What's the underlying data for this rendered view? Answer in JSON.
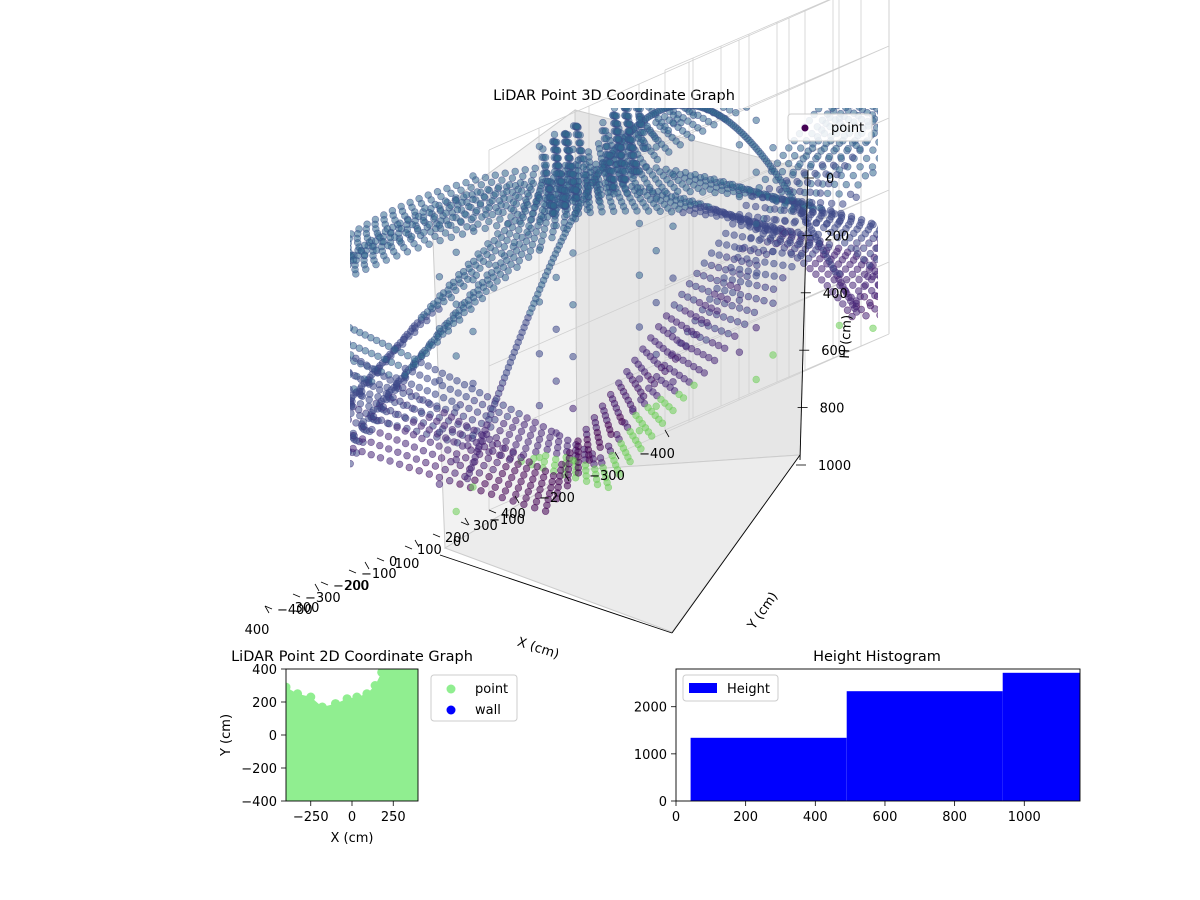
{
  "chart_data": [
    {
      "type": "scatter",
      "projection": "3d",
      "title": "LiDAR Point 3D Coordinate Graph",
      "xlabel": "X (cm)",
      "ylabel": "Y (cm)",
      "zlabel": "H (cm)",
      "x_ticks": [
        "−400",
        "−300",
        "−200",
        "−100",
        "0",
        "100",
        "200",
        "300",
        "400"
      ],
      "y_ticks": [
        "−400",
        "−300",
        "−200",
        "−100",
        "0",
        "100",
        "200",
        "300",
        "400"
      ],
      "z_ticks": [
        "0",
        "200",
        "400",
        "600",
        "800",
        "1000"
      ],
      "xlim": [
        -400,
        400
      ],
      "ylim": [
        -400,
        400
      ],
      "zlim": [
        1000,
        0
      ],
      "z_inverted": true,
      "legend": {
        "placement": "upper-right",
        "entries": [
          "point"
        ]
      },
      "grid": true,
      "colormap": "viridis",
      "series": [
        {
          "name": "point",
          "color": "#440154",
          "bowl_rings": [
            {
              "radius": 550,
              "h_center": 100,
              "dip": 900
            },
            {
              "radius": 620,
              "h_center": 50,
              "dip": 920
            },
            {
              "radius": 500,
              "h_center": 200,
              "dip": 880
            }
          ],
          "clusters": [
            {
              "x": -60,
              "y": 60,
              "h_top": 40,
              "h_bottom": 260
            },
            {
              "x": 60,
              "y": 60,
              "h_top": 40,
              "h_bottom": 260
            }
          ]
        }
      ]
    },
    {
      "type": "scatter",
      "title": "LiDAR Point 2D Coordinate Graph",
      "xlabel": "X (cm)",
      "ylabel": "Y (cm)",
      "x_ticks": [
        -250,
        0,
        250
      ],
      "y_ticks": [
        -400,
        -200,
        0,
        200,
        400
      ],
      "xlim": [
        -400,
        400
      ],
      "ylim": [
        -400,
        400
      ],
      "legend": {
        "placement": "outside-right",
        "entries": [
          "point",
          "wall"
        ]
      },
      "grid": false,
      "series": [
        {
          "name": "point",
          "color": "#90ee90",
          "boundary": [
            [
              -400,
              290
            ],
            [
              -330,
              250
            ],
            [
              -250,
              230
            ],
            [
              -180,
              170
            ],
            [
              -100,
              190
            ],
            [
              -30,
              220
            ],
            [
              30,
              230
            ],
            [
              90,
              250
            ],
            [
              140,
              300
            ],
            [
              180,
              380
            ],
            [
              200,
              400
            ]
          ]
        },
        {
          "name": "wall",
          "color": "#0000ff",
          "values": []
        }
      ]
    },
    {
      "type": "bar",
      "subtype": "histogram",
      "title": "Height Histogram",
      "xlabel": "",
      "ylabel": "",
      "xlim": [
        0,
        1160
      ],
      "ylim": [
        0,
        2800
      ],
      "x_ticks": [
        0,
        200,
        400,
        600,
        800,
        1000
      ],
      "y_ticks": [
        0,
        1000,
        2000
      ],
      "legend": {
        "placement": "upper-left",
        "entries": [
          "Height"
        ]
      },
      "grid": false,
      "series": [
        {
          "name": "Height",
          "color": "#0000ff",
          "bins": [
            {
              "x0": 42,
              "x1": 490,
              "value": 1340
            },
            {
              "x0": 490,
              "x1": 938,
              "value": 2330
            },
            {
              "x0": 938,
              "x1": 1160,
              "value": 2720
            }
          ]
        }
      ]
    }
  ]
}
